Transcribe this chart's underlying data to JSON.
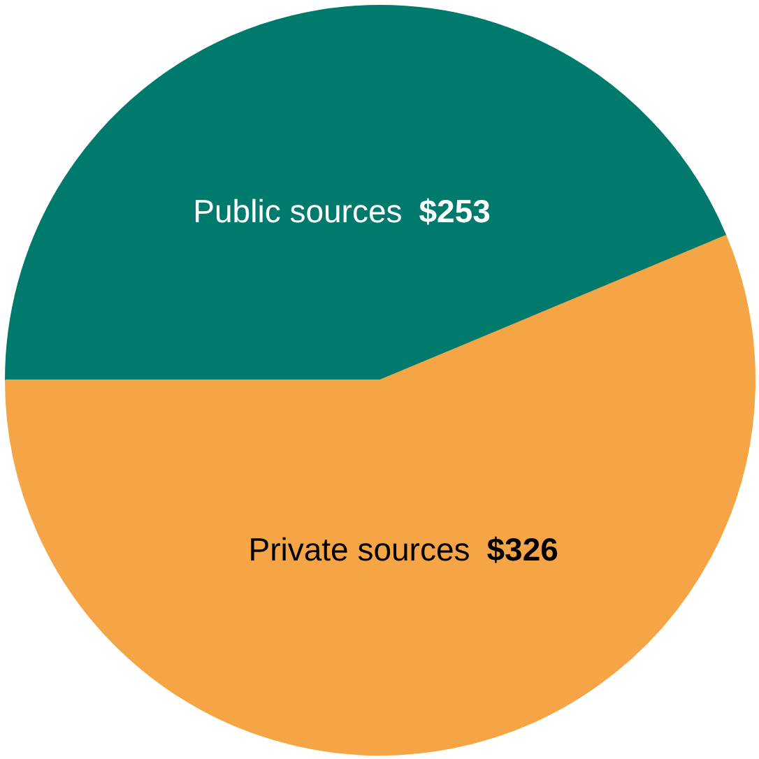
{
  "chart_data": {
    "type": "pie",
    "categories": [
      "Public sources",
      "Private sources"
    ],
    "values": [
      253,
      326
    ],
    "value_labels": [
      "$253",
      "$326"
    ],
    "colors": [
      "#007a6c",
      "#f5a545"
    ]
  }
}
